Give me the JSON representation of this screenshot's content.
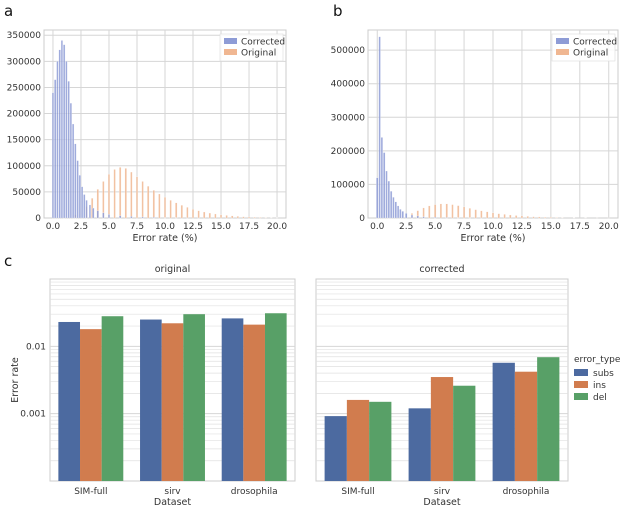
{
  "panels": {
    "a": "a",
    "b": "b",
    "c": "c"
  },
  "colors": {
    "corrected": "#8e9cd6",
    "original": "#f0b792",
    "subs": "#4c6aa0",
    "ins": "#d17c4e",
    "del": "#58a067"
  },
  "chart_data": [
    {
      "id": "a",
      "type": "bar",
      "subtype": "histogram",
      "xlabel": "Error rate (%)",
      "ylabel": "",
      "xlim": [
        -0.8,
        20.8
      ],
      "ylim": [
        0,
        360000
      ],
      "xticks": [
        0.0,
        2.5,
        5.0,
        7.5,
        10.0,
        12.5,
        15.0,
        17.5,
        20.0
      ],
      "xtick_labels": [
        "0.0",
        "2.5",
        "5.0",
        "7.5",
        "10.0",
        "12.5",
        "15.0",
        "17.5",
        "20.0"
      ],
      "yticks": [
        0,
        50000,
        100000,
        150000,
        200000,
        250000,
        300000,
        350000
      ],
      "ytick_labels": [
        "0",
        "50000",
        "100000",
        "150000",
        "200000",
        "250000",
        "300000",
        "350000"
      ],
      "legend": {
        "position": "top-right",
        "entries": [
          "Corrected",
          "Original"
        ]
      },
      "series": [
        {
          "name": "Corrected",
          "color_key": "corrected",
          "points": [
            [
              0.0,
              240000
            ],
            [
              0.2,
              265000
            ],
            [
              0.4,
              300000
            ],
            [
              0.6,
              322000
            ],
            [
              0.8,
              340000
            ],
            [
              1.0,
              332000
            ],
            [
              1.2,
              300000
            ],
            [
              1.4,
              262000
            ],
            [
              1.6,
              220000
            ],
            [
              1.8,
              180000
            ],
            [
              2.0,
              142000
            ],
            [
              2.2,
              110000
            ],
            [
              2.4,
              82000
            ],
            [
              2.6,
              60000
            ],
            [
              2.8,
              45000
            ],
            [
              3.0,
              34000
            ],
            [
              3.3,
              25000
            ],
            [
              3.6,
              19000
            ],
            [
              4.0,
              14000
            ],
            [
              4.5,
              10000
            ],
            [
              5.0,
              7000
            ],
            [
              6.0,
              4500
            ],
            [
              7.0,
              3000
            ],
            [
              8.0,
              2000
            ],
            [
              9.0,
              1200
            ],
            [
              10.0,
              700
            ],
            [
              11.0,
              400
            ],
            [
              12.0,
              200
            ],
            [
              13.0,
              100
            ],
            [
              14.0,
              0
            ]
          ]
        },
        {
          "name": "Original",
          "color_key": "original",
          "points": [
            [
              0.0,
              0
            ],
            [
              1.0,
              1500
            ],
            [
              2.0,
              6000
            ],
            [
              3.0,
              22000
            ],
            [
              3.5,
              38000
            ],
            [
              4.0,
              55000
            ],
            [
              4.5,
              70000
            ],
            [
              5.0,
              84000
            ],
            [
              5.5,
              93000
            ],
            [
              6.0,
              97000
            ],
            [
              6.5,
              95000
            ],
            [
              7.0,
              88000
            ],
            [
              7.5,
              79000
            ],
            [
              8.0,
              70000
            ],
            [
              8.5,
              61000
            ],
            [
              9.0,
              53000
            ],
            [
              9.5,
              46000
            ],
            [
              10.0,
              40000
            ],
            [
              10.5,
              34000
            ],
            [
              11.0,
              29000
            ],
            [
              11.5,
              24500
            ],
            [
              12.0,
              20500
            ],
            [
              12.5,
              17000
            ],
            [
              13.0,
              14000
            ],
            [
              13.5,
              11500
            ],
            [
              14.0,
              9500
            ],
            [
              14.5,
              7700
            ],
            [
              15.0,
              6200
            ],
            [
              15.5,
              5000
            ],
            [
              16.0,
              4000
            ],
            [
              16.5,
              3200
            ],
            [
              17.0,
              2500
            ],
            [
              17.5,
              2000
            ],
            [
              18.0,
              1500
            ],
            [
              18.5,
              1100
            ],
            [
              19.0,
              800
            ],
            [
              19.5,
              500
            ],
            [
              20.0,
              300
            ]
          ]
        }
      ]
    },
    {
      "id": "b",
      "type": "bar",
      "subtype": "histogram",
      "xlabel": "Error rate (%)",
      "ylabel": "",
      "xlim": [
        -0.8,
        20.8
      ],
      "ylim": [
        0,
        560000
      ],
      "xticks": [
        0.0,
        2.5,
        5.0,
        7.5,
        10.0,
        12.5,
        15.0,
        17.5,
        20.0
      ],
      "xtick_labels": [
        "0.0",
        "2.5",
        "5.0",
        "7.5",
        "10.0",
        "12.5",
        "15.0",
        "17.5",
        "20.0"
      ],
      "yticks": [
        0,
        100000,
        200000,
        300000,
        400000,
        500000
      ],
      "ytick_labels": [
        "0",
        "100000",
        "200000",
        "300000",
        "400000",
        "500000"
      ],
      "legend": {
        "position": "top-right",
        "entries": [
          "Corrected",
          "Original"
        ]
      },
      "series": [
        {
          "name": "Corrected",
          "color_key": "corrected",
          "points": [
            [
              0.0,
              120000
            ],
            [
              0.2,
              540000
            ],
            [
              0.4,
              240000
            ],
            [
              0.6,
              195000
            ],
            [
              0.8,
              140000
            ],
            [
              1.0,
              110000
            ],
            [
              1.2,
              80000
            ],
            [
              1.4,
              62000
            ],
            [
              1.6,
              48000
            ],
            [
              1.8,
              36000
            ],
            [
              2.0,
              26000
            ],
            [
              2.2,
              20000
            ],
            [
              2.5,
              14000
            ],
            [
              3.0,
              9000
            ],
            [
              3.5,
              6000
            ],
            [
              4.0,
              4000
            ],
            [
              5.0,
              2500
            ],
            [
              6.0,
              1500
            ],
            [
              7.0,
              800
            ],
            [
              8.0,
              400
            ],
            [
              9.0,
              200
            ],
            [
              10.0,
              0
            ]
          ]
        },
        {
          "name": "Original",
          "color_key": "original",
          "points": [
            [
              0.0,
              0
            ],
            [
              1.0,
              1000
            ],
            [
              2.0,
              4000
            ],
            [
              3.0,
              14000
            ],
            [
              3.5,
              22000
            ],
            [
              4.0,
              30000
            ],
            [
              4.5,
              36000
            ],
            [
              5.0,
              40000
            ],
            [
              5.5,
              42000
            ],
            [
              6.0,
              42000
            ],
            [
              6.5,
              40000
            ],
            [
              7.0,
              37000
            ],
            [
              7.5,
              33000
            ],
            [
              8.0,
              29000
            ],
            [
              8.5,
              25000
            ],
            [
              9.0,
              21500
            ],
            [
              9.5,
              18500
            ],
            [
              10.0,
              15500
            ],
            [
              10.5,
              13000
            ],
            [
              11.0,
              11000
            ],
            [
              11.5,
              9000
            ],
            [
              12.0,
              7500
            ],
            [
              12.5,
              6200
            ],
            [
              13.0,
              5000
            ],
            [
              13.5,
              4000
            ],
            [
              14.0,
              3200
            ],
            [
              14.5,
              2500
            ],
            [
              15.0,
              2000
            ],
            [
              15.5,
              1500
            ],
            [
              16.0,
              1100
            ],
            [
              17.0,
              700
            ],
            [
              18.0,
              400
            ],
            [
              19.0,
              200
            ],
            [
              20.0,
              100
            ]
          ]
        }
      ]
    },
    {
      "id": "c",
      "type": "bar",
      "subtype": "grouped-log",
      "ylabel": "Error rate",
      "xlabel": "Dataset",
      "yscale": "log",
      "ylim": [
        0.0001,
        0.1
      ],
      "yticks": [
        0.001,
        0.01
      ],
      "ytick_labels": [
        "0.001",
        "0.01"
      ],
      "categories": [
        "SIM-full",
        "sirv",
        "drosophila"
      ],
      "legend": {
        "title": "error_type",
        "position": "right",
        "entries": [
          "subs",
          "ins",
          "del"
        ]
      },
      "facets": [
        {
          "title": "original",
          "series": [
            {
              "name": "subs",
              "color_key": "subs",
              "values": [
                0.023,
                0.025,
                0.026
              ]
            },
            {
              "name": "ins",
              "color_key": "ins",
              "values": [
                0.018,
                0.022,
                0.021
              ]
            },
            {
              "name": "del",
              "color_key": "del",
              "values": [
                0.028,
                0.03,
                0.031
              ]
            }
          ]
        },
        {
          "title": "corrected",
          "series": [
            {
              "name": "subs",
              "color_key": "subs",
              "values": [
                0.00092,
                0.0012,
                0.0057
              ]
            },
            {
              "name": "ins",
              "color_key": "ins",
              "values": [
                0.0016,
                0.0035,
                0.0042
              ]
            },
            {
              "name": "del",
              "color_key": "del",
              "values": [
                0.0015,
                0.0026,
                0.0069
              ]
            }
          ]
        }
      ]
    }
  ]
}
